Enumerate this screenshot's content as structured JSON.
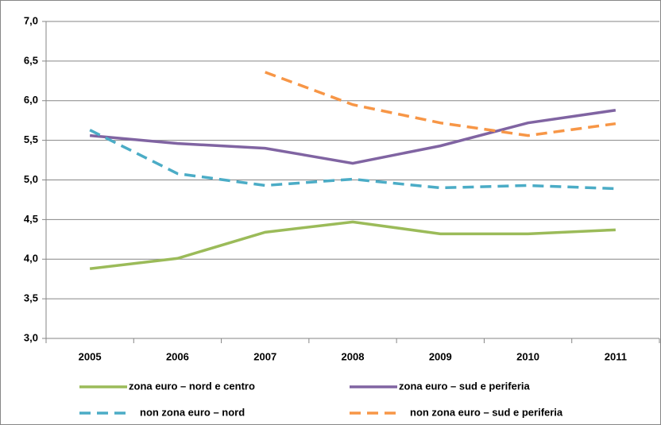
{
  "chart_data": {
    "type": "line",
    "categories": [
      "2005",
      "2006",
      "2007",
      "2008",
      "2009",
      "2010",
      "2011"
    ],
    "series": [
      {
        "name": "zona euro – nord e centro",
        "color": "#9bbb59",
        "dashed": false,
        "values": [
          3.88,
          4.01,
          4.34,
          4.47,
          4.32,
          4.32,
          4.37
        ]
      },
      {
        "name": "zona euro – sud e periferia",
        "color": "#8064a2",
        "dashed": false,
        "values": [
          5.56,
          5.46,
          5.4,
          5.21,
          5.43,
          5.72,
          5.88
        ]
      },
      {
        "name": "non zona euro – nord",
        "color": "#4bacc6",
        "dashed": true,
        "values": [
          5.63,
          5.08,
          4.93,
          5.01,
          4.9,
          4.93,
          4.89
        ]
      },
      {
        "name": "non zona euro – sud e periferia",
        "color": "#f79646",
        "dashed": true,
        "values": [
          null,
          null,
          6.36,
          5.95,
          5.72,
          5.56,
          5.71
        ]
      }
    ],
    "ylim": [
      3,
      7
    ],
    "yticks": [
      {
        "value": 3,
        "label": "3,0"
      },
      {
        "value": 3.5,
        "label": "3,5"
      },
      {
        "value": 4,
        "label": "4,0"
      },
      {
        "value": 4.5,
        "label": "4,5"
      },
      {
        "value": 5,
        "label": "5,0"
      },
      {
        "value": 5.5,
        "label": "5,5"
      },
      {
        "value": 6,
        "label": "6,0"
      },
      {
        "value": 6.5,
        "label": "6,5"
      },
      {
        "value": 7,
        "label": "7,0"
      }
    ],
    "grid": true
  }
}
